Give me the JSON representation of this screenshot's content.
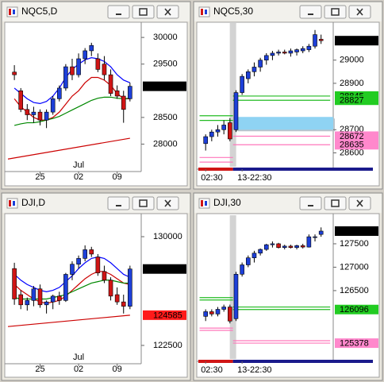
{
  "chart_data": [
    {
      "type": "candlestick",
      "title": "NQC5,D",
      "open": [
        29350,
        29000,
        28650,
        28550,
        28600,
        28450,
        28600,
        28850,
        29050,
        29450,
        29300,
        29600,
        29750,
        29600,
        29500,
        29300,
        29000,
        28900,
        28850
      ],
      "high": [
        29480,
        29050,
        28750,
        28700,
        28650,
        28650,
        28900,
        29100,
        29500,
        29600,
        29700,
        29800,
        29900,
        29700,
        29650,
        29400,
        29100,
        29000,
        29150
      ],
      "low": [
        29200,
        28600,
        28450,
        28400,
        28350,
        28300,
        28550,
        28800,
        29000,
        29200,
        29250,
        29500,
        29650,
        29350,
        29200,
        28900,
        28850,
        28400,
        28800
      ],
      "close": [
        29300,
        28650,
        28550,
        28600,
        28450,
        28600,
        28850,
        29050,
        29450,
        29300,
        29600,
        29750,
        29850,
        29400,
        29300,
        28950,
        28900,
        28650,
        29084
      ],
      "up_color": "#1d3fd8",
      "down_color": "#d01515",
      "lines": [
        {
          "color": "#0000ff",
          "values": [
            29050,
            28950,
            28850,
            28780,
            28760,
            28800,
            28900,
            29050,
            29250,
            29400,
            29500,
            29580,
            29620,
            29600,
            29550,
            29450,
            29300,
            29200,
            29150
          ]
        },
        {
          "color": "#cc0000",
          "values": [
            28850,
            28700,
            28600,
            28500,
            28450,
            28450,
            28500,
            28600,
            28750,
            28900,
            29000,
            29150,
            29250,
            29250,
            29200,
            29100,
            28950,
            28850,
            28850
          ]
        },
        {
          "color": "#008800",
          "values": [
            28350,
            28380,
            28400,
            28400,
            28420,
            28450,
            28480,
            28520,
            28580,
            28640,
            28700,
            28760,
            28820,
            28860,
            28880,
            28880,
            28860,
            28850,
            28860
          ]
        }
      ],
      "segments": [
        {
          "color": "#cc0000",
          "x": [
            -1,
            18
          ],
          "y": [
            27720,
            28110
          ]
        }
      ],
      "xlim": [
        -1.25,
        19.75
      ],
      "ylim": [
        27530,
        30270
      ],
      "yticks": [
        28000,
        28500,
        29500,
        30000
      ],
      "xticks": [
        {
          "value": 4,
          "label": "25"
        },
        {
          "value": 10,
          "label": "02"
        },
        {
          "value": 16,
          "label": "09"
        }
      ],
      "month_ticks": [
        {
          "value": 10,
          "label": "Jul"
        }
      ],
      "price_labels": [
        {
          "value": 29084,
          "color": "#000000",
          "text_color": "#ffffff"
        }
      ]
    },
    {
      "type": "candlestick",
      "title": "NQC5,30",
      "open": [
        28640,
        28670,
        28690,
        28700,
        28730,
        28700,
        28860,
        28920,
        28950,
        28970,
        29000,
        29020,
        29030,
        29035,
        29030,
        29035,
        29040,
        29045,
        29060,
        29090
      ],
      "high": [
        28680,
        28700,
        28720,
        28740,
        28750,
        28870,
        28940,
        28960,
        28990,
        29010,
        29030,
        29040,
        29045,
        29045,
        29050,
        29050,
        29060,
        29070,
        29130,
        29110
      ],
      "low": [
        28610,
        28650,
        28670,
        28680,
        28650,
        28690,
        28850,
        28900,
        28930,
        28950,
        28980,
        29000,
        29020,
        29025,
        29015,
        29020,
        29030,
        29035,
        29050,
        29070
      ],
      "close": [
        28670,
        28690,
        28700,
        28720,
        28660,
        28860,
        28930,
        28950,
        28970,
        29000,
        29020,
        29030,
        29035,
        29030,
        29040,
        29045,
        29050,
        29060,
        29110,
        29084
      ],
      "up_color": "#1d3fd8",
      "down_color": "#d01515",
      "zones": [
        {
          "color": "#8fd3f3",
          "x": [
            4.5,
            21
          ],
          "y": [
            28700,
            28755
          ]
        }
      ],
      "session_breaks": [
        4.5
      ],
      "segments": [
        {
          "color": "#22bb22",
          "x": [
            -1,
            4.5
          ],
          "y": [
            28760,
            28760
          ]
        },
        {
          "color": "#22bb22",
          "x": [
            -1,
            4.5
          ],
          "y": [
            28740,
            28740
          ]
        },
        {
          "color": "#22bb22",
          "x": [
            4.5,
            20.5
          ],
          "y": [
            28845,
            28845
          ]
        },
        {
          "color": "#22bb22",
          "x": [
            4.5,
            20.5
          ],
          "y": [
            28827,
            28827
          ]
        },
        {
          "color": "#ff77bb",
          "x": [
            -1,
            4.5
          ],
          "y": [
            28580,
            28580
          ]
        },
        {
          "color": "#ff77bb",
          "x": [
            -1,
            4.5
          ],
          "y": [
            28560,
            28560
          ]
        },
        {
          "color": "#ff77bb",
          "x": [
            4.5,
            20.5
          ],
          "y": [
            28672,
            28672
          ]
        },
        {
          "color": "#ff77bb",
          "x": [
            4.5,
            20.5
          ],
          "y": [
            28635,
            28635
          ]
        }
      ],
      "xlim": [
        -1.2,
        21
      ],
      "ylim": [
        28540,
        29160
      ],
      "yticks": [
        28600,
        28700,
        28900,
        29000
      ],
      "xticks": [
        {
          "value": 0,
          "label": "02:30"
        },
        {
          "value": 6,
          "label": "13-22:30"
        }
      ],
      "price_labels": [
        {
          "value": 29084,
          "color": "#000000",
          "text_color": "#ffffff"
        },
        {
          "value": 28845,
          "color": "#22cc22",
          "text_color": "#000000"
        },
        {
          "value": 28827,
          "color": "#22cc22",
          "text_color": "#000000"
        },
        {
          "value": 28672,
          "color": "#ff88cc",
          "text_color": "#000000"
        },
        {
          "value": 28635,
          "color": "#ff88cc",
          "text_color": "#000000"
        }
      ]
    },
    {
      "type": "candlestick",
      "title": "DJI,D",
      "open": [
        127800,
        126000,
        125300,
        125600,
        126400,
        125300,
        125500,
        125900,
        125600,
        127400,
        128100,
        128500,
        129100,
        128600,
        127600,
        127000,
        126000,
        125500,
        125200
      ],
      "high": [
        128200,
        126300,
        125800,
        126600,
        126700,
        125600,
        126000,
        126200,
        127500,
        128300,
        128700,
        129400,
        129300,
        128800,
        128000,
        127200,
        126500,
        126000,
        128000
      ],
      "low": [
        125300,
        125000,
        124900,
        125200,
        125100,
        124700,
        125000,
        125300,
        125500,
        127000,
        127800,
        128300,
        128600,
        127300,
        126800,
        125600,
        125300,
        124700,
        125000
      ],
      "close": [
        125700,
        125300,
        125600,
        126400,
        125300,
        125500,
        125900,
        125600,
        127400,
        128100,
        128500,
        129100,
        128800,
        127500,
        127000,
        125900,
        125500,
        125200,
        127771
      ],
      "up_color": "#1d3fd8",
      "down_color": "#d01515",
      "lines": [
        {
          "color": "#0000ff",
          "values": [
            127400,
            127000,
            126700,
            126500,
            126300,
            126200,
            126300,
            126500,
            126900,
            127300,
            127800,
            128200,
            128500,
            128600,
            128500,
            128200,
            127800,
            127400,
            127200
          ]
        },
        {
          "color": "#cc0000",
          "values": [
            126700,
            126300,
            126000,
            125700,
            125500,
            125400,
            125500,
            125600,
            125900,
            126300,
            126700,
            127100,
            127400,
            127600,
            127600,
            127400,
            127100,
            126800,
            126700
          ]
        },
        {
          "color": "#008800",
          "values": [
            125800,
            125700,
            125700,
            125700,
            125700,
            125700,
            125800,
            125900,
            126000,
            126200,
            126400,
            126600,
            126800,
            126900,
            127000,
            127000,
            126900,
            126800,
            126800
          ]
        }
      ],
      "segments": [
        {
          "color": "#cc0000",
          "x": [
            -1,
            18
          ],
          "y": [
            123800,
            124585
          ]
        }
      ],
      "xlim": [
        -1.25,
        19.75
      ],
      "ylim": [
        121400,
        131480
      ],
      "yticks": [
        122500,
        130000
      ],
      "xticks": [
        {
          "value": 4,
          "label": "25"
        },
        {
          "value": 10,
          "label": "02"
        },
        {
          "value": 16,
          "label": "09"
        }
      ],
      "month_ticks": [
        {
          "value": 10,
          "label": "Jul"
        }
      ],
      "price_labels": [
        {
          "value": 127771,
          "color": "#000000",
          "text_color": "#ffffff"
        },
        {
          "value": 124585,
          "color": "#ff1a1a",
          "text_color": "#ffffff"
        }
      ]
    },
    {
      "type": "candlestick",
      "title": "DJI,30",
      "open": [
        125950,
        126050,
        126000,
        126100,
        126150,
        125900,
        126850,
        127050,
        127200,
        127300,
        127380,
        127480,
        127500,
        127420,
        127450,
        127420,
        127460,
        127430,
        127650,
        127700
      ],
      "high": [
        126100,
        126100,
        126150,
        126200,
        126200,
        126900,
        127100,
        127250,
        127350,
        127400,
        127500,
        127550,
        127520,
        127480,
        127480,
        127480,
        127500,
        127700,
        127700,
        127850
      ],
      "low": [
        125850,
        125950,
        125950,
        126050,
        125800,
        125850,
        126800,
        127000,
        127100,
        127250,
        127350,
        127420,
        127400,
        127380,
        127400,
        127380,
        127400,
        127420,
        127550,
        127650
      ],
      "close": [
        126050,
        126000,
        126100,
        126150,
        125850,
        126850,
        127050,
        127200,
        127300,
        127380,
        127480,
        127500,
        127420,
        127450,
        127420,
        127460,
        127430,
        127650,
        127650,
        127771
      ],
      "up_color": "#1d3fd8",
      "down_color": "#d01515",
      "session_breaks": [
        4.5
      ],
      "segments": [
        {
          "color": "#22bb22",
          "x": [
            -1,
            4.5
          ],
          "y": [
            126350,
            126350
          ]
        },
        {
          "color": "#22bb22",
          "x": [
            -1,
            4.5
          ],
          "y": [
            126300,
            126300
          ]
        },
        {
          "color": "#22bb22",
          "x": [
            4.5,
            20.5
          ],
          "y": [
            126150,
            126150
          ]
        },
        {
          "color": "#22bb22",
          "x": [
            4.5,
            20.5
          ],
          "y": [
            126096,
            126096
          ]
        },
        {
          "color": "#ff77bb",
          "x": [
            -1,
            4.5
          ],
          "y": [
            125700,
            125700
          ]
        },
        {
          "color": "#ff77bb",
          "x": [
            -1,
            4.5
          ],
          "y": [
            125650,
            125650
          ]
        },
        {
          "color": "#ff77bb",
          "x": [
            4.5,
            20.5
          ],
          "y": [
            125430,
            125430
          ]
        },
        {
          "color": "#ff77bb",
          "x": [
            4.5,
            20.5
          ],
          "y": [
            125378,
            125378
          ]
        }
      ],
      "xlim": [
        -1.2,
        21
      ],
      "ylim": [
        125040,
        128110
      ],
      "yticks": [
        126500,
        127000,
        127500
      ],
      "xticks": [
        {
          "value": 0,
          "label": "02:30"
        },
        {
          "value": 6,
          "label": "13-22:30"
        }
      ],
      "price_labels": [
        {
          "value": 127771,
          "color": "#000000",
          "text_color": "#ffffff"
        },
        {
          "value": 126096,
          "color": "#22cc22",
          "text_color": "#000000"
        },
        {
          "value": 125378,
          "color": "#ff88cc",
          "text_color": "#000000"
        }
      ]
    }
  ]
}
